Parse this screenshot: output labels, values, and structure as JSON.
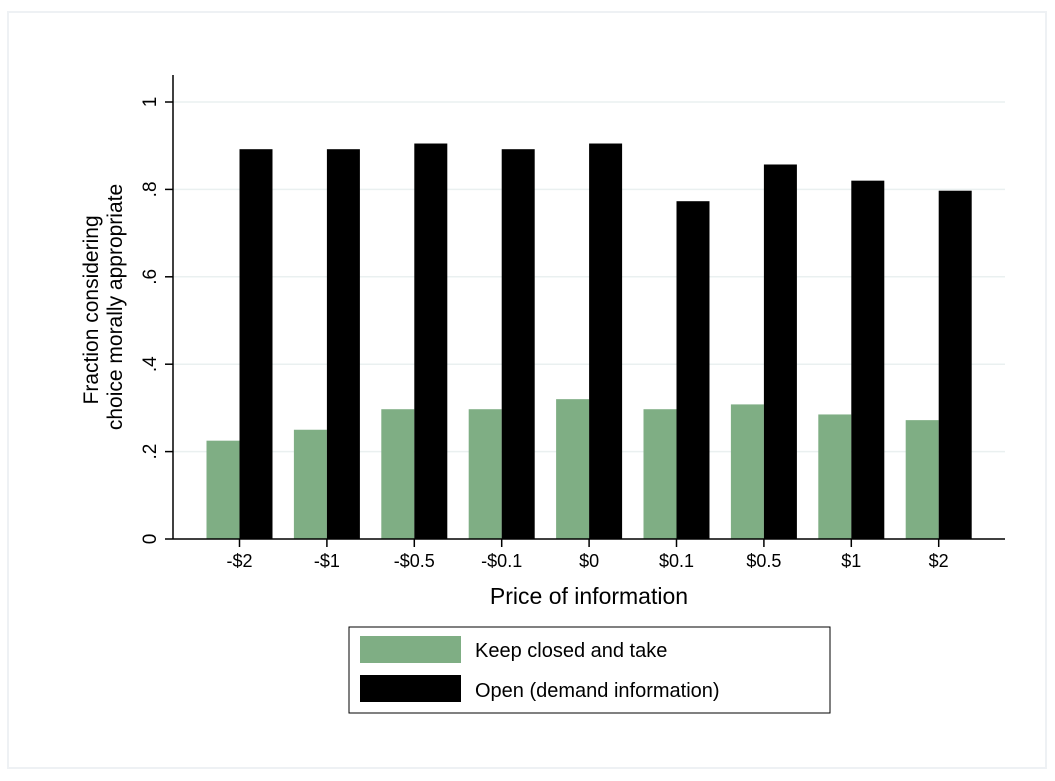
{
  "chart_data": {
    "type": "bar",
    "title": "",
    "xlabel": "Price of information",
    "ylabel_lines": [
      "Fraction considering",
      "choice morally appropriate"
    ],
    "categories": [
      "-$2",
      "-$1",
      "-$0.5",
      "-$0.1",
      "$0",
      "$0.1",
      "$0.5",
      "$1",
      "$2"
    ],
    "ylim": [
      0,
      1
    ],
    "yticks": [
      0,
      0.2,
      0.4,
      0.6,
      0.8,
      1
    ],
    "ytick_labels": [
      "0",
      ".2",
      ".4",
      ".6",
      ".8",
      "1"
    ],
    "grid": true,
    "legend_position": "bottom",
    "series": [
      {
        "name": "Keep closed and take",
        "color": "#7fae84",
        "values": [
          0.225,
          0.25,
          0.297,
          0.297,
          0.32,
          0.297,
          0.308,
          0.285,
          0.272
        ]
      },
      {
        "name": "Open (demand information)",
        "color": "#000000",
        "values": [
          0.892,
          0.892,
          0.905,
          0.892,
          0.905,
          0.773,
          0.857,
          0.82,
          0.797
        ]
      }
    ]
  }
}
